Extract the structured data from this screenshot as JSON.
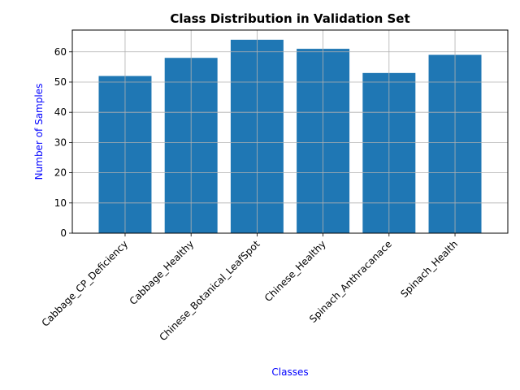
{
  "chart_data": {
    "type": "bar",
    "title": "Class Distribution in Validation Set",
    "xlabel": "Classes",
    "ylabel": "Number of Samples",
    "label_color": "#0000ff",
    "bar_color": "#1f77b4",
    "grid_color": "#b0b0b0",
    "grid": true,
    "categories": [
      "Cabbage_CP_Deficiency",
      "Cabbage_Healthy",
      "Chinese_Botanical_LeafSpot",
      "Chinese_Healthy",
      "Spinach_Anthracanace",
      "Spinach_Health"
    ],
    "values": [
      52,
      58,
      64,
      61,
      53,
      59
    ],
    "ylim": [
      0,
      67.2
    ],
    "yticks": [
      0,
      10,
      20,
      30,
      40,
      50,
      60
    ],
    "xtick_rotation": -45
  }
}
